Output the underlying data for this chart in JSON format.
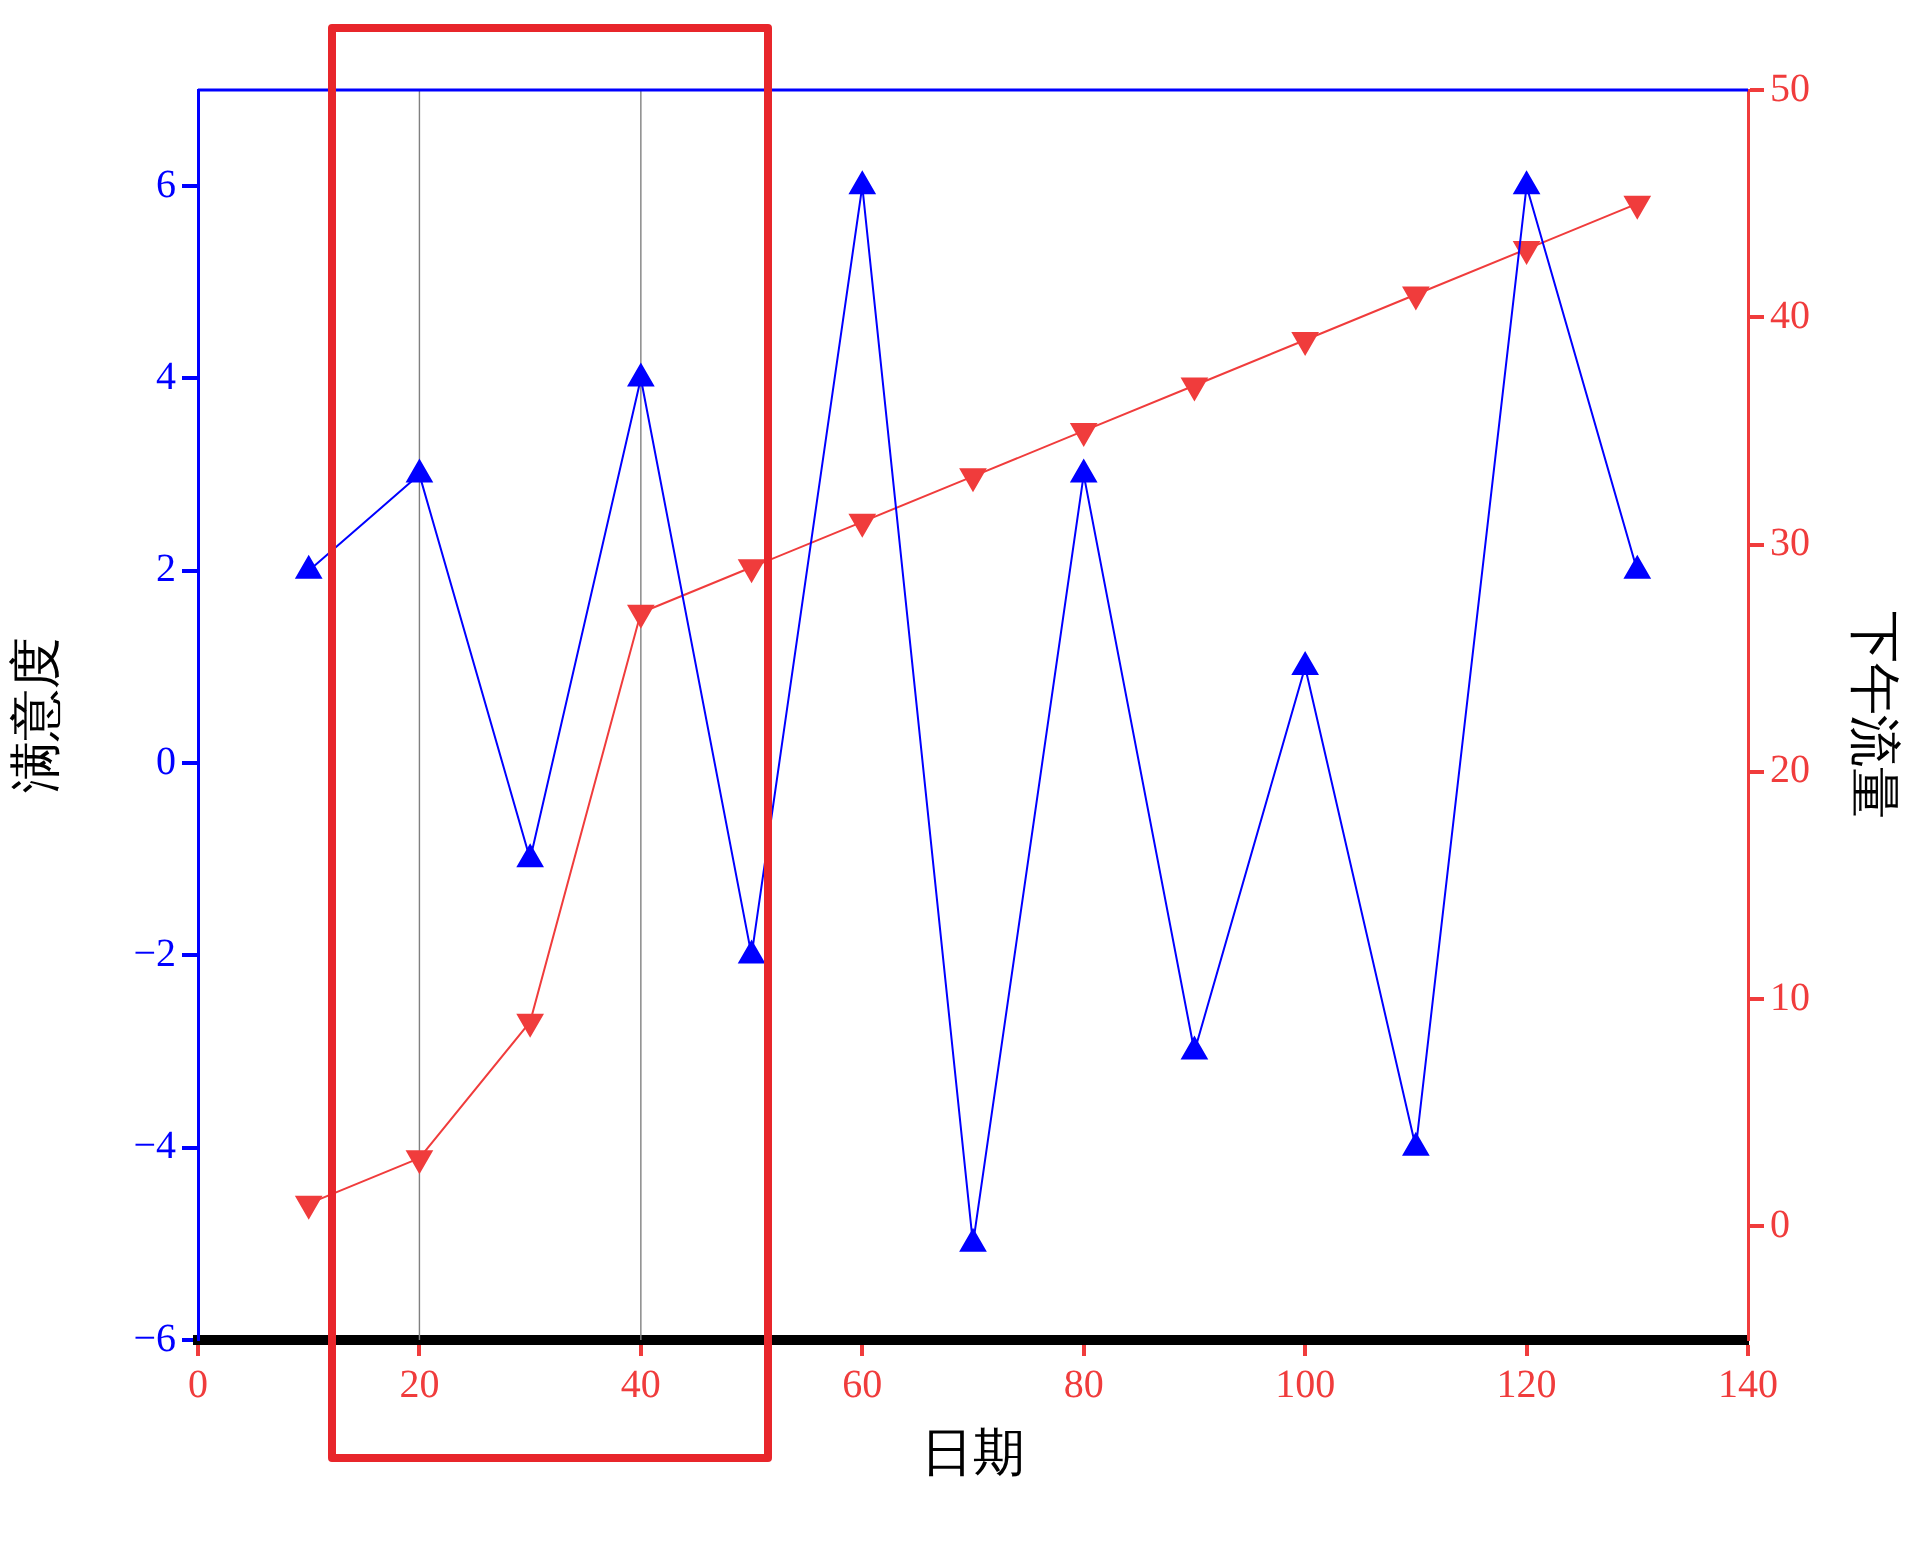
{
  "chart_data": {
    "type": "line",
    "xlabel": "日期",
    "ylabel": "满意度",
    "y2label": "下午流量",
    "xlim": [
      0,
      140
    ],
    "xticks": [
      0,
      20,
      40,
      60,
      80,
      100,
      120,
      140
    ],
    "ylim": [
      -6,
      7
    ],
    "yticks": [
      -6,
      -4,
      -2,
      0,
      2,
      4,
      6
    ],
    "y2lim": [
      -5,
      50
    ],
    "y2ticks": [
      0,
      10,
      20,
      30,
      40,
      50
    ],
    "grid": false,
    "marker": "triangle",
    "ref_lines": [
      {
        "axis": "x",
        "value": 20,
        "color": "#808080"
      },
      {
        "axis": "x",
        "value": 40,
        "color": "#808080"
      }
    ],
    "series": [
      {
        "color": "#0000ff",
        "x": [
          10,
          20,
          30,
          40,
          50,
          60,
          70,
          80,
          90,
          100,
          110,
          120,
          130
        ],
        "values": [
          2,
          3,
          -1,
          4,
          -2,
          6,
          -5,
          3,
          -3,
          1,
          -4,
          6,
          2
        ]
      },
      {
        "color": "#f03c3c",
        "axis": "y2",
        "x": [
          10,
          20,
          30,
          40,
          50,
          60,
          70,
          80,
          90,
          100,
          110,
          120,
          130
        ],
        "values": [
          1,
          3,
          9,
          27,
          29,
          31,
          33,
          35,
          37,
          39,
          41,
          43,
          45
        ]
      }
    ]
  }
}
